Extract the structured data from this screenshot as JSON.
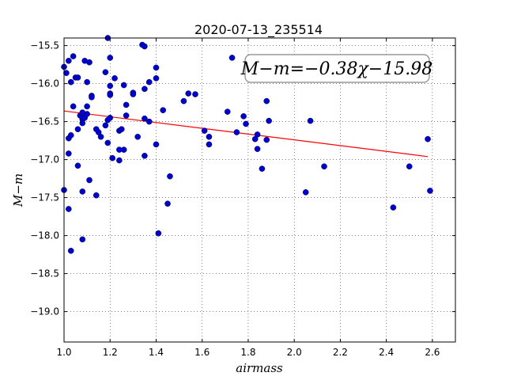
{
  "chart_data": {
    "type": "scatter",
    "title": "2020-07-13_235514",
    "xlabel": "airmass",
    "ylabel": "M−m",
    "xlim": [
      1.0,
      2.7
    ],
    "ylim": [
      -19.4,
      -15.4
    ],
    "y_inverted": true,
    "xticks": [
      "1.0",
      "1.2",
      "1.4",
      "1.6",
      "1.8",
      "2.0",
      "2.2",
      "2.4",
      "2.6"
    ],
    "yticks": [
      "−15.5",
      "−16.0",
      "−16.5",
      "−17.0",
      "−17.5",
      "−18.0",
      "−18.5",
      "−19.0"
    ],
    "grid": true,
    "point_color": "#0000cc",
    "fit_color": "#ff0000",
    "annotation": "M−m=−0.38χ−15.98",
    "fit": {
      "slope": -0.38,
      "intercept": -15.98,
      "x_range": [
        1.0,
        2.58
      ]
    },
    "points": [
      {
        "x": 1.0,
        "y": -15.78
      },
      {
        "x": 1.0,
        "y": -17.4
      },
      {
        "x": 1.01,
        "y": -15.86
      },
      {
        "x": 1.02,
        "y": -15.7
      },
      {
        "x": 1.02,
        "y": -16.72
      },
      {
        "x": 1.02,
        "y": -16.92
      },
      {
        "x": 1.02,
        "y": -17.65
      },
      {
        "x": 1.03,
        "y": -15.98
      },
      {
        "x": 1.03,
        "y": -16.68
      },
      {
        "x": 1.03,
        "y": -18.2
      },
      {
        "x": 1.04,
        "y": -15.64
      },
      {
        "x": 1.04,
        "y": -16.3
      },
      {
        "x": 1.05,
        "y": -15.92
      },
      {
        "x": 1.06,
        "y": -15.92
      },
      {
        "x": 1.06,
        "y": -16.6
      },
      {
        "x": 1.06,
        "y": -17.08
      },
      {
        "x": 1.07,
        "y": -16.42
      },
      {
        "x": 1.08,
        "y": -16.38
      },
      {
        "x": 1.08,
        "y": -16.47
      },
      {
        "x": 1.08,
        "y": -16.52
      },
      {
        "x": 1.08,
        "y": -17.42
      },
      {
        "x": 1.08,
        "y": -18.05
      },
      {
        "x": 1.09,
        "y": -15.7
      },
      {
        "x": 1.09,
        "y": -16.45
      },
      {
        "x": 1.1,
        "y": -15.98
      },
      {
        "x": 1.1,
        "y": -16.3
      },
      {
        "x": 1.1,
        "y": -16.4
      },
      {
        "x": 1.11,
        "y": -15.72
      },
      {
        "x": 1.11,
        "y": -17.27
      },
      {
        "x": 1.12,
        "y": -16.16
      },
      {
        "x": 1.12,
        "y": -16.18
      },
      {
        "x": 1.14,
        "y": -16.6
      },
      {
        "x": 1.14,
        "y": -17.47
      },
      {
        "x": 1.15,
        "y": -16.64
      },
      {
        "x": 1.16,
        "y": -16.7
      },
      {
        "x": 1.18,
        "y": -15.85
      },
      {
        "x": 1.18,
        "y": -16.55
      },
      {
        "x": 1.19,
        "y": -15.4
      },
      {
        "x": 1.19,
        "y": -16.78
      },
      {
        "x": 1.19,
        "y": -16.48
      },
      {
        "x": 1.2,
        "y": -15.66
      },
      {
        "x": 1.2,
        "y": -16.03
      },
      {
        "x": 1.2,
        "y": -16.13
      },
      {
        "x": 1.2,
        "y": -16.15
      },
      {
        "x": 1.2,
        "y": -16.45
      },
      {
        "x": 1.21,
        "y": -16.98
      },
      {
        "x": 1.22,
        "y": -15.93
      },
      {
        "x": 1.24,
        "y": -16.62
      },
      {
        "x": 1.24,
        "y": -16.87
      },
      {
        "x": 1.24,
        "y": -17.01
      },
      {
        "x": 1.25,
        "y": -16.6
      },
      {
        "x": 1.26,
        "y": -16.87
      },
      {
        "x": 1.26,
        "y": -16.02
      },
      {
        "x": 1.27,
        "y": -16.28
      },
      {
        "x": 1.27,
        "y": -16.42
      },
      {
        "x": 1.3,
        "y": -16.12
      },
      {
        "x": 1.3,
        "y": -16.14
      },
      {
        "x": 1.32,
        "y": -16.7
      },
      {
        "x": 1.34,
        "y": -15.49
      },
      {
        "x": 1.35,
        "y": -15.51
      },
      {
        "x": 1.35,
        "y": -16.07
      },
      {
        "x": 1.35,
        "y": -16.46
      },
      {
        "x": 1.35,
        "y": -16.95
      },
      {
        "x": 1.37,
        "y": -15.98
      },
      {
        "x": 1.37,
        "y": -16.5
      },
      {
        "x": 1.4,
        "y": -15.79
      },
      {
        "x": 1.4,
        "y": -15.93
      },
      {
        "x": 1.4,
        "y": -16.8
      },
      {
        "x": 1.41,
        "y": -17.97
      },
      {
        "x": 1.43,
        "y": -16.35
      },
      {
        "x": 1.45,
        "y": -17.58
      },
      {
        "x": 1.46,
        "y": -17.22
      },
      {
        "x": 1.52,
        "y": -16.23
      },
      {
        "x": 1.54,
        "y": -16.13
      },
      {
        "x": 1.57,
        "y": -16.14
      },
      {
        "x": 1.61,
        "y": -16.62
      },
      {
        "x": 1.63,
        "y": -16.7
      },
      {
        "x": 1.63,
        "y": -16.8
      },
      {
        "x": 1.71,
        "y": -16.37
      },
      {
        "x": 1.73,
        "y": -15.66
      },
      {
        "x": 1.75,
        "y": -16.64
      },
      {
        "x": 1.78,
        "y": -16.43
      },
      {
        "x": 1.79,
        "y": -16.53
      },
      {
        "x": 1.83,
        "y": -16.73
      },
      {
        "x": 1.84,
        "y": -16.67
      },
      {
        "x": 1.84,
        "y": -16.86
      },
      {
        "x": 1.86,
        "y": -17.12
      },
      {
        "x": 1.88,
        "y": -16.23
      },
      {
        "x": 1.88,
        "y": -16.74
      },
      {
        "x": 1.89,
        "y": -16.49
      },
      {
        "x": 2.05,
        "y": -17.43
      },
      {
        "x": 2.07,
        "y": -16.49
      },
      {
        "x": 2.13,
        "y": -17.09
      },
      {
        "x": 2.43,
        "y": -17.63
      },
      {
        "x": 2.5,
        "y": -17.09
      },
      {
        "x": 2.58,
        "y": -16.73
      },
      {
        "x": 2.59,
        "y": -17.41
      }
    ]
  }
}
